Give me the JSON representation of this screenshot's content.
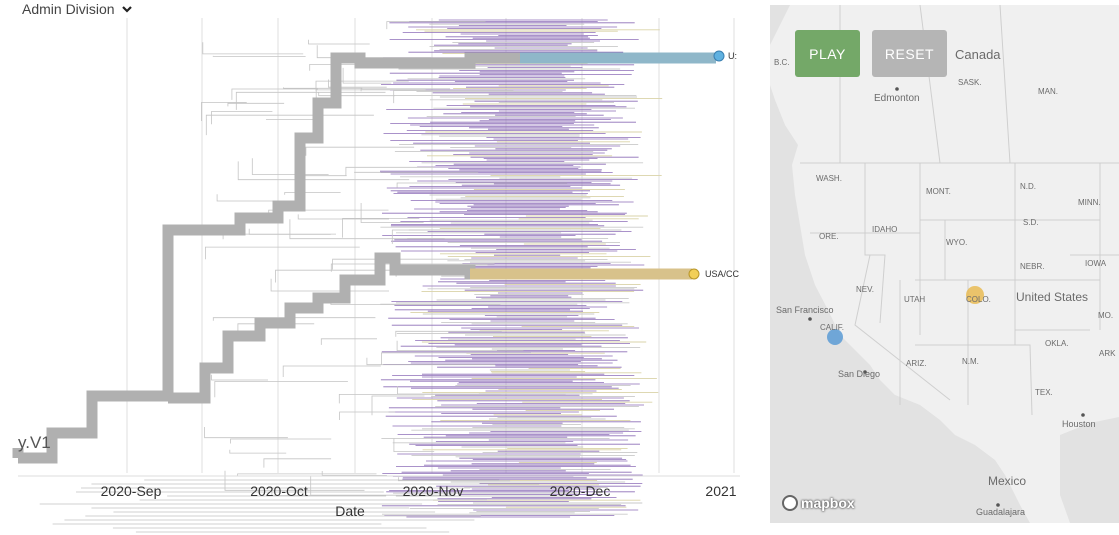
{
  "color_by": {
    "label": "Admin Division"
  },
  "tree": {
    "x_axis_title": "Date",
    "x_ticks": [
      "2020-Sep",
      "2020-Oct",
      "2020-Nov",
      "2020-Dec",
      "2021"
    ],
    "clade_label": "y.V1",
    "highlighted_tips": [
      {
        "label": "U:",
        "color": "#5fb1e0"
      },
      {
        "label": "USA/CC",
        "color": "#f2cf58"
      }
    ],
    "branch_color_main": "#b0b0b0",
    "branch_color_tips": "#8e6fb8"
  },
  "map": {
    "play_label": "PLAY",
    "reset_label": "RESET",
    "attribution": "mapbox",
    "labels": {
      "canada": "Canada",
      "bc": "B.C.",
      "sask": "SASK.",
      "man": "MAN.",
      "edmonton": "Edmonton",
      "wash": "WASH.",
      "mont": "MONT.",
      "nd": "N.D.",
      "minn": "MINN.",
      "ore": "ORE.",
      "idaho": "IDAHO",
      "wyo": "WYO.",
      "sd": "S.D.",
      "nebr": "NEBR.",
      "iowa": "IOWA",
      "nev": "NEV.",
      "utah": "UTAH",
      "colo": "COLO.",
      "united_states": "United States",
      "mo": "MO.",
      "san_francisco": "San Francisco",
      "calif": "CALIF.",
      "okla": "OKLA.",
      "ark": "ARK",
      "ariz": "ARIZ.",
      "nm": "N.M.",
      "san_diego": "San Diego",
      "tex": "TEX.",
      "houston": "Houston",
      "mexico": "Mexico",
      "guadalajara": "Guadalajara"
    },
    "markers": [
      {
        "place": "California",
        "color": "#5b9bd5"
      },
      {
        "place": "Colorado",
        "color": "#e8b84a"
      }
    ]
  }
}
